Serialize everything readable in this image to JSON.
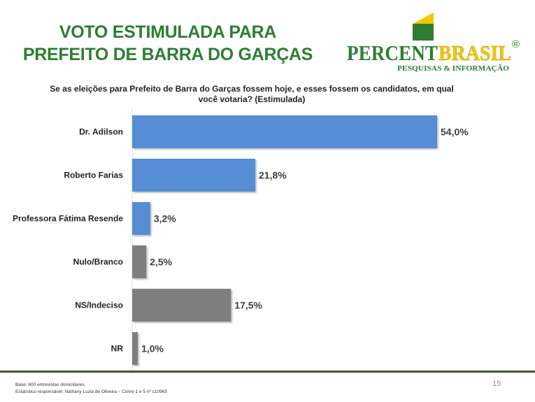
{
  "title_lines": [
    "VOTO ESTIMULADA PARA",
    "PREFEITO DE BARRA DO GARÇAS"
  ],
  "logo": {
    "part1": "PERCENT",
    "part2": "BRASIL",
    "registered": "®",
    "tagline": "PESQUISAS & INFORMAÇÃO"
  },
  "question": "Se as eleições para Prefeito de Barra do Garças fossem hoje, e esses fossem os  candidatos, em qual você votaria? (Estimulada)",
  "colors": {
    "title": "#2e7d32",
    "blue": "#558ed5",
    "gray": "#7f7f7f",
    "logo_green": "#2e7d32",
    "logo_yellow": "#f2c600"
  },
  "chart_data": {
    "type": "bar",
    "orientation": "horizontal",
    "categories": [
      "Dr. Adilson",
      "Roberto Farias",
      "Professora Fátima Resende",
      "Nulo/Branco",
      "NS/Indeciso",
      "NR"
    ],
    "values": [
      54.0,
      21.8,
      3.2,
      2.5,
      17.5,
      1.0
    ],
    "labels": [
      "54,0%",
      "21,8%",
      "3,2%",
      "2,5%",
      "17,5%",
      "1,0%"
    ],
    "bar_colors": [
      "#558ed5",
      "#558ed5",
      "#558ed5",
      "#7f7f7f",
      "#7f7f7f",
      "#7f7f7f"
    ],
    "xlim": [
      0,
      54
    ],
    "grid": false,
    "legend": "none"
  },
  "footer": {
    "line1": "Base: 600 entrevistas domiciliares.",
    "line2": "Estatístico responsável: Nathany Luzia de Oliveira – Conre 1 e 5 nº c10965"
  },
  "page_number": "15"
}
